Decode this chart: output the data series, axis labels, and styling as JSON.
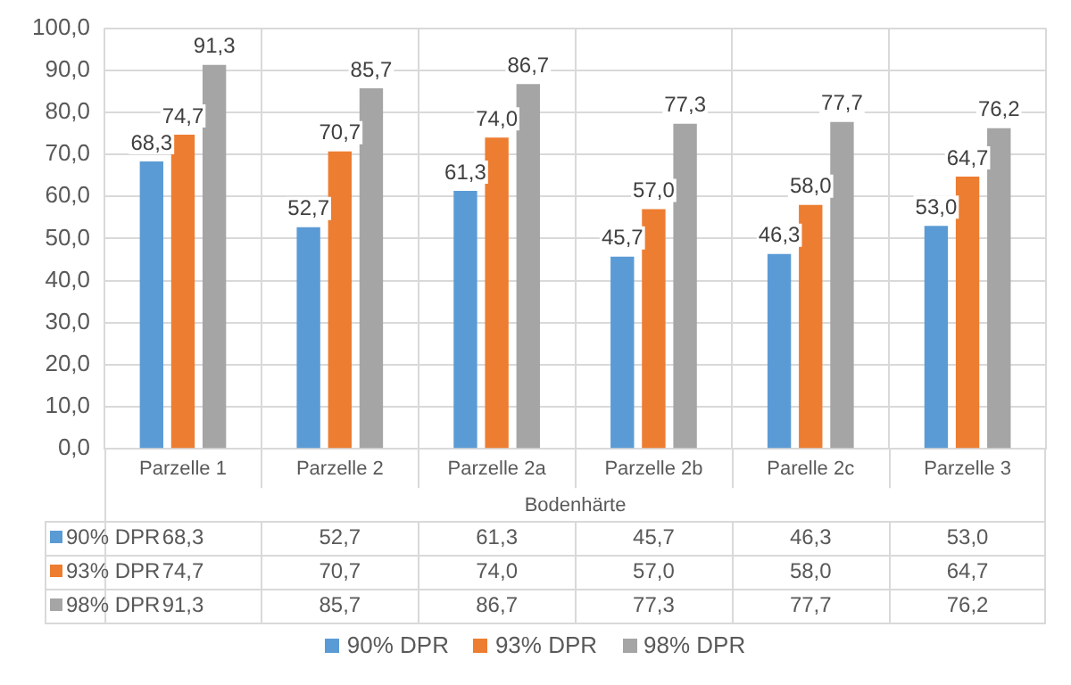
{
  "chart_data": {
    "type": "bar",
    "xlabel": "Bodenhärte",
    "categories": [
      "Parzelle 1",
      "Parzelle 2",
      "Parzelle 2a",
      "Parzelle 2b",
      "Parelle 2c",
      "Parzelle 3"
    ],
    "series": [
      {
        "name": "90% DPR",
        "color": "#5b9bd5",
        "values": [
          68.3,
          52.7,
          61.3,
          45.7,
          46.3,
          53.0
        ],
        "value_labels": [
          "68,3",
          "52,7",
          "61,3",
          "45,7",
          "46,3",
          "53,0"
        ]
      },
      {
        "name": "93% DPR",
        "color": "#ed7d31",
        "values": [
          74.7,
          70.7,
          74.0,
          57.0,
          58.0,
          64.7
        ],
        "value_labels": [
          "74,7",
          "70,7",
          "74,0",
          "57,0",
          "58,0",
          "64,7"
        ]
      },
      {
        "name": "98% DPR",
        "color": "#a5a5a5",
        "values": [
          91.3,
          85.7,
          86.7,
          77.3,
          77.7,
          76.2
        ],
        "value_labels": [
          "91,3",
          "85,7",
          "86,7",
          "77,3",
          "77,7",
          "76,2"
        ]
      }
    ],
    "ylim": [
      0,
      100
    ],
    "yticks": [
      {
        "value": 0,
        "label": "0,0"
      },
      {
        "value": 10,
        "label": "10,0"
      },
      {
        "value": 20,
        "label": "20,0"
      },
      {
        "value": 30,
        "label": "30,0"
      },
      {
        "value": 40,
        "label": "40,0"
      },
      {
        "value": 50,
        "label": "50,0"
      },
      {
        "value": 60,
        "label": "60,0"
      },
      {
        "value": 70,
        "label": "70,0"
      },
      {
        "value": 80,
        "label": "80,0"
      },
      {
        "value": 90,
        "label": "90,0"
      },
      {
        "value": 100,
        "label": "100,0"
      }
    ],
    "grid": true,
    "legend": "bottom"
  }
}
